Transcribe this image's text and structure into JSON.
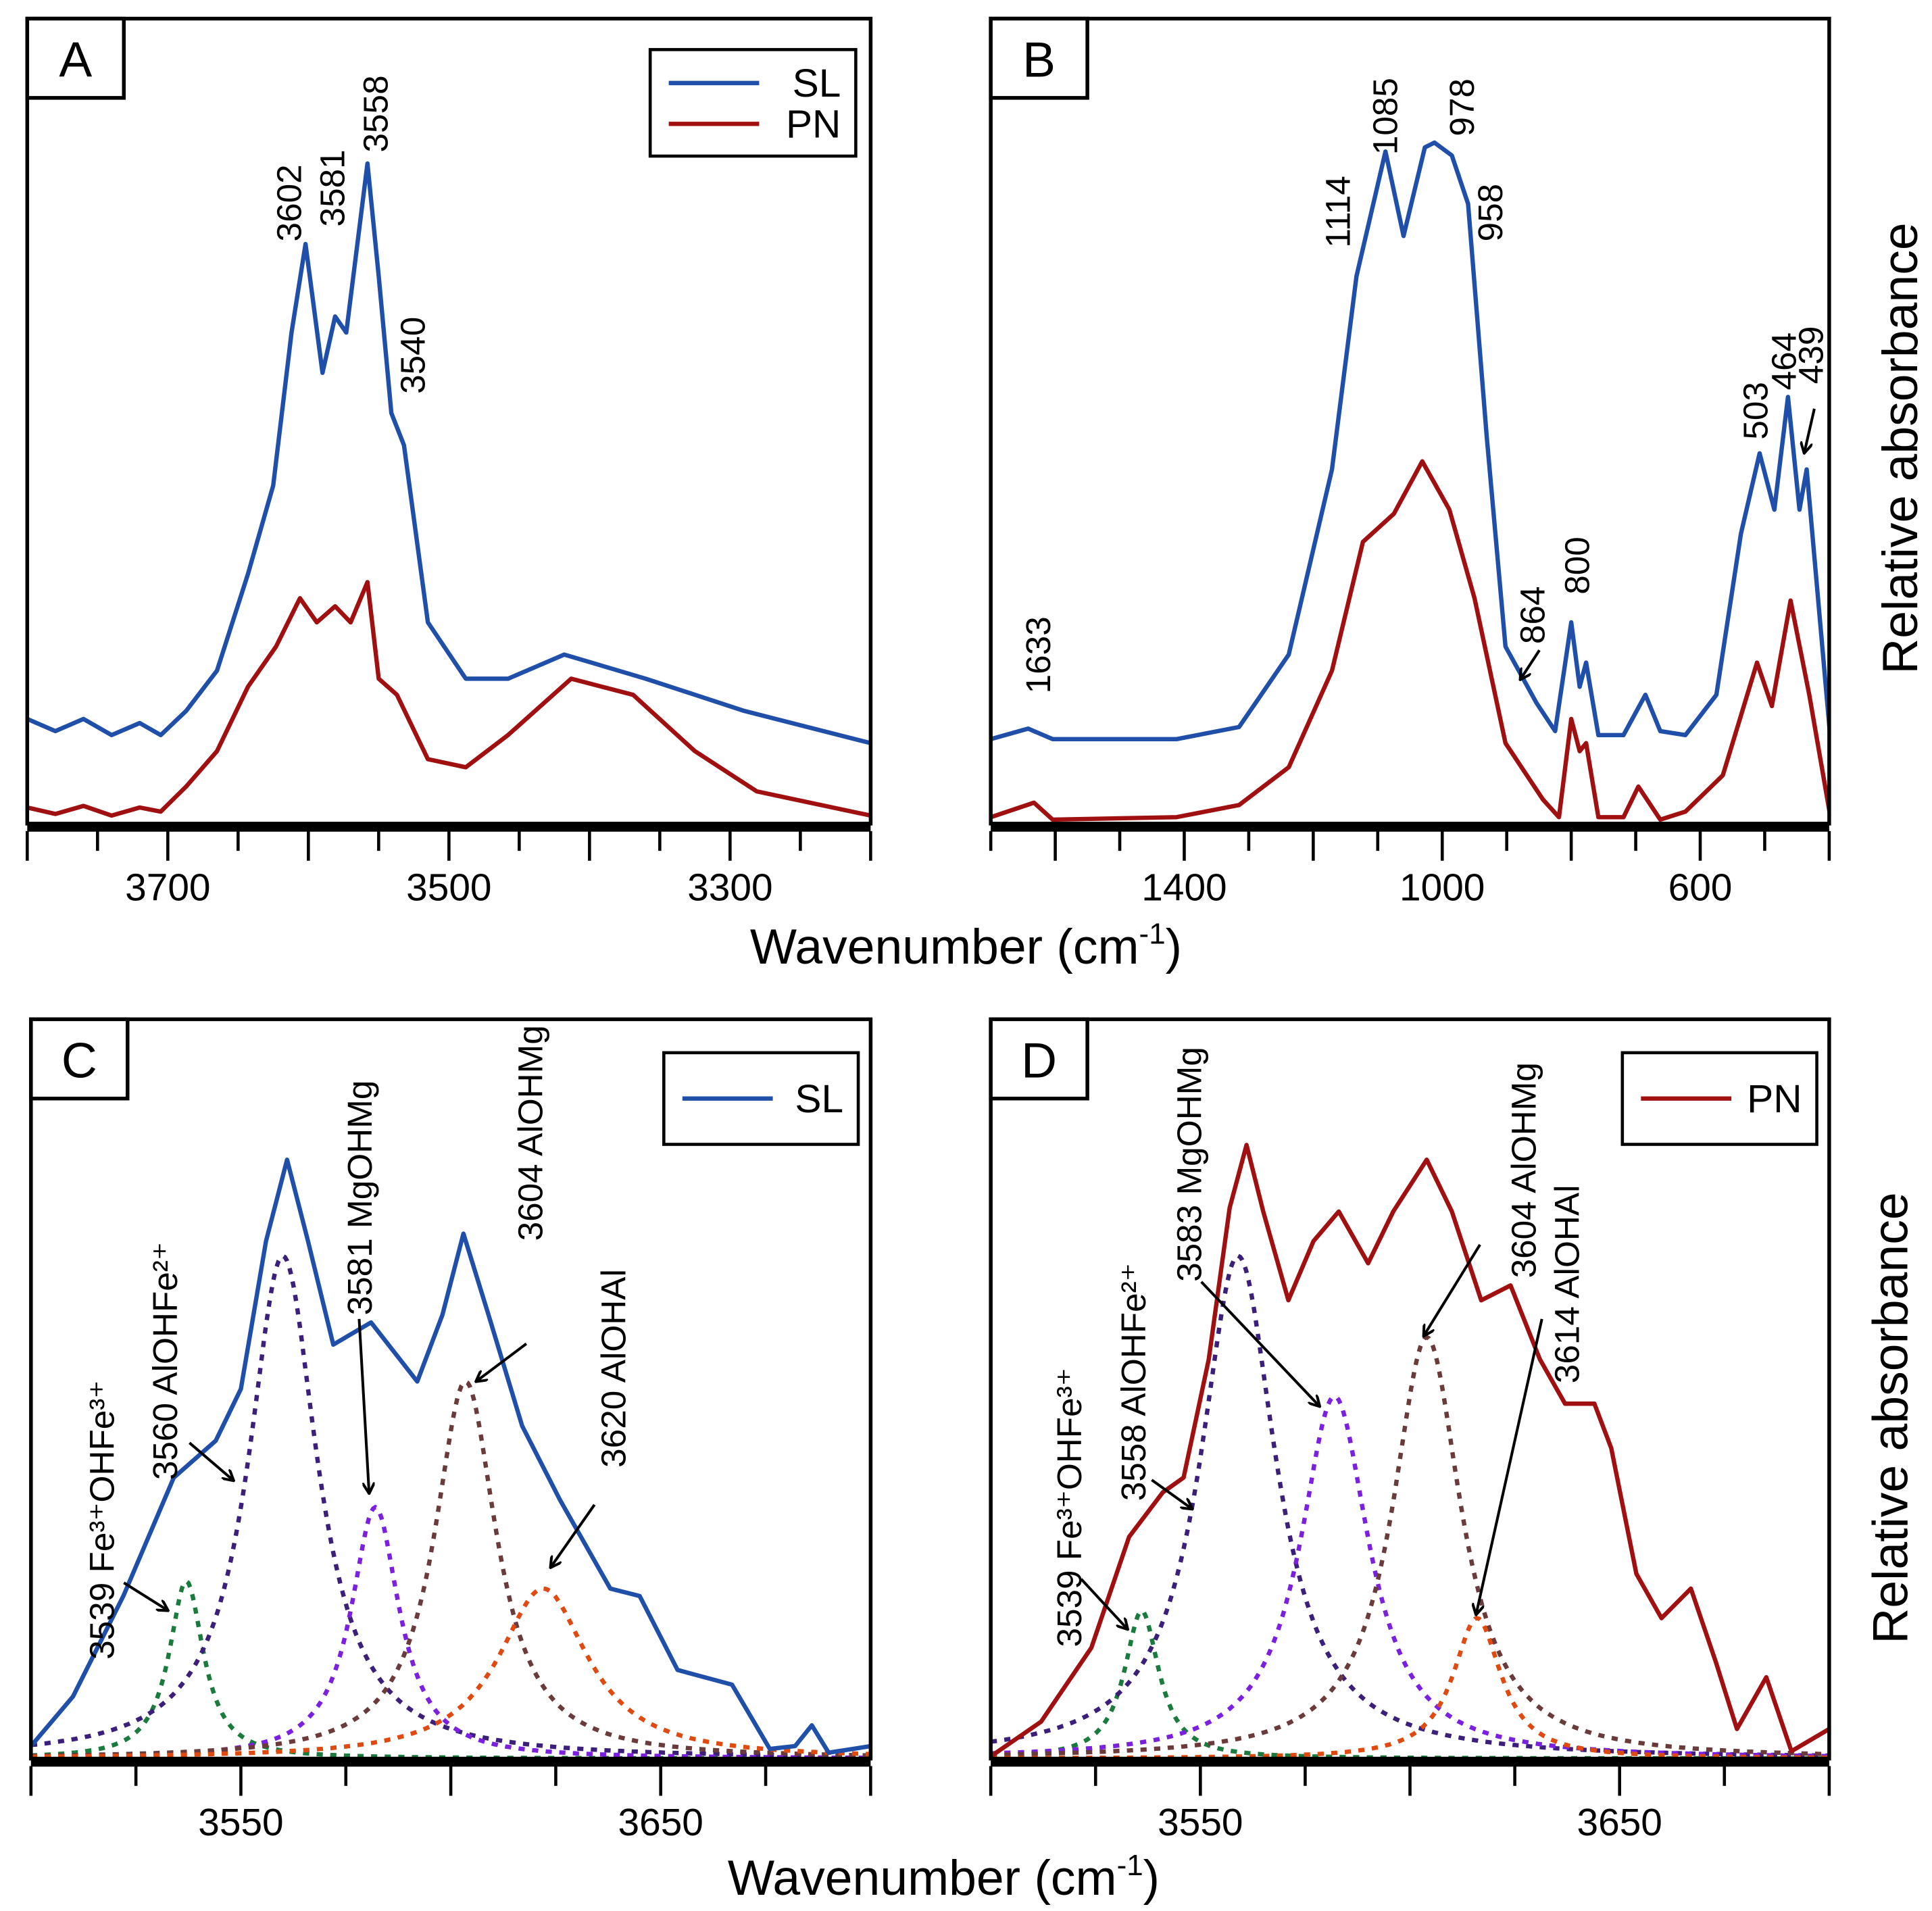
{
  "chart_data": [
    {
      "panel": "A",
      "type": "line",
      "xlabel": "Wavenumber (cm-1)",
      "ylabel": "Relative absorbance",
      "xlim": [
        3800,
        3200
      ],
      "ylim": [
        0,
        1
      ],
      "xticks_labeled": [
        "3700",
        "3500",
        "3300"
      ],
      "legend": {
        "position": "top-right",
        "entries": [
          "SL",
          "PN"
        ]
      },
      "series": [
        {
          "name": "SL",
          "color": "#1f4fa8",
          "x": [
            3800,
            3780,
            3760,
            3740,
            3720,
            3705,
            3687,
            3665,
            3643,
            3625,
            3612,
            3602,
            3590,
            3581,
            3573,
            3558,
            3550,
            3541,
            3532,
            3515,
            3488,
            3458,
            3418,
            3360,
            3290,
            3200
          ],
          "y": [
            0.13,
            0.115,
            0.13,
            0.11,
            0.125,
            0.11,
            0.14,
            0.19,
            0.31,
            0.42,
            0.61,
            0.72,
            0.56,
            0.63,
            0.61,
            0.82,
            0.68,
            0.51,
            0.47,
            0.25,
            0.18,
            0.18,
            0.21,
            0.18,
            0.14,
            0.1
          ]
        },
        {
          "name": "PN",
          "color": "#a01010",
          "x": [
            3800,
            3780,
            3760,
            3740,
            3720,
            3705,
            3687,
            3665,
            3643,
            3623,
            3606,
            3594,
            3581,
            3570,
            3558,
            3550,
            3537,
            3515,
            3488,
            3458,
            3413,
            3369,
            3325,
            3281,
            3200
          ],
          "y": [
            0.02,
            0.012,
            0.022,
            0.01,
            0.02,
            0.015,
            0.046,
            0.09,
            0.17,
            0.22,
            0.28,
            0.25,
            0.27,
            0.25,
            0.3,
            0.18,
            0.16,
            0.08,
            0.07,
            0.11,
            0.18,
            0.16,
            0.09,
            0.04,
            0.01
          ]
        }
      ],
      "annotations": [
        "3602",
        "3581",
        "3558",
        "3540"
      ]
    },
    {
      "panel": "B",
      "type": "line",
      "xlabel": "Wavenumber (cm-1)",
      "ylabel": "Relative absorbance",
      "xlim": [
        1700,
        400
      ],
      "ylim": [
        0,
        1
      ],
      "xticks_labeled": [
        "1400",
        "1000",
        "600"
      ],
      "series": [
        {
          "name": "SL",
          "color": "#1f4fa8",
          "x": [
            1700,
            1642,
            1604,
            1412,
            1315,
            1238,
            1171,
            1133,
            1088,
            1060,
            1027,
            1012,
            985,
            960,
            931,
            902,
            854,
            825,
            800,
            787,
            777,
            758,
            719,
            685,
            662,
            623,
            575,
            537,
            508,
            485,
            464,
            446,
            435,
            398
          ],
          "y": [
            0.105,
            0.118,
            0.105,
            0.105,
            0.12,
            0.21,
            0.44,
            0.68,
            0.835,
            0.73,
            0.84,
            0.846,
            0.83,
            0.77,
            0.48,
            0.22,
            0.15,
            0.115,
            0.25,
            0.17,
            0.2,
            0.11,
            0.11,
            0.16,
            0.115,
            0.11,
            0.16,
            0.36,
            0.46,
            0.39,
            0.53,
            0.39,
            0.44,
            0.105
          ]
        },
        {
          "name": "PN",
          "color": "#a01010",
          "x": [
            1700,
            1633,
            1604,
            1412,
            1315,
            1238,
            1171,
            1123,
            1075,
            1031,
            989,
            950,
            902,
            844,
            819,
            800,
            787,
            777,
            758,
            719,
            696,
            662,
            623,
            565,
            512,
            489,
            460,
            431,
            398
          ],
          "y": [
            0.008,
            0.026,
            0.005,
            0.008,
            0.023,
            0.07,
            0.19,
            0.35,
            0.385,
            0.45,
            0.39,
            0.28,
            0.1,
            0.03,
            0.008,
            0.13,
            0.09,
            0.1,
            0.008,
            0.008,
            0.046,
            0.005,
            0.015,
            0.06,
            0.2,
            0.146,
            0.277,
            0.16,
            0.008
          ]
        }
      ],
      "annotations": [
        "1114",
        "1085",
        "978",
        "958",
        "864",
        "800",
        "1633",
        "503",
        "464",
        "439"
      ]
    },
    {
      "panel": "C",
      "type": "line",
      "xlabel": "Wavenumber (cm-1)",
      "ylabel": "",
      "xlim": [
        3500,
        3700
      ],
      "ylim": [
        0,
        1
      ],
      "xticks_labeled": [
        "3550",
        "3650"
      ],
      "legend": {
        "position": "top-right",
        "entries": [
          "SL"
        ]
      },
      "series": [
        {
          "name": "SL",
          "color": "#1f4fa8",
          "x": [
            3500,
            3510,
            3522,
            3534,
            3544,
            3550,
            3556,
            3561,
            3566,
            3572,
            3581,
            3592,
            3598,
            3603,
            3609,
            3617,
            3626,
            3638,
            3645,
            3654,
            3667,
            3676,
            3682,
            3686,
            3690,
            3700
          ],
          "y": [
            0.017,
            0.084,
            0.22,
            0.38,
            0.43,
            0.5,
            0.7,
            0.81,
            0.7,
            0.56,
            0.59,
            0.51,
            0.6,
            0.71,
            0.6,
            0.45,
            0.35,
            0.23,
            0.22,
            0.12,
            0.1,
            0.013,
            0.017,
            0.045,
            0.008,
            0.017
          ]
        }
      ],
      "components": [
        {
          "name": "3539 Fe³⁺OHFe³⁺",
          "center": 3537,
          "height": 0.24,
          "hwhm": 5,
          "color": "#1b7a3e"
        },
        {
          "name": "3560 AlOHFe²⁺",
          "center": 3560,
          "height": 0.68,
          "hwhm": 10,
          "color": "#3b1f7a"
        },
        {
          "name": "3581 MgOHMg",
          "center": 3582,
          "height": 0.34,
          "hwhm": 7,
          "color": "#7b1fe0"
        },
        {
          "name": "3604 AlOHMg",
          "center": 3603.5,
          "height": 0.51,
          "hwhm": 9,
          "color": "#6b3a3a"
        },
        {
          "name": "3620 AlOHAl",
          "center": 3622,
          "height": 0.23,
          "hwhm": 13,
          "color": "#e04a10"
        }
      ]
    },
    {
      "panel": "D",
      "type": "line",
      "xlabel": "Wavenumber (cm-1)",
      "ylabel": "Relative absorbance",
      "xlim": [
        3500,
        3700
      ],
      "ylim": [
        0,
        1
      ],
      "xticks_labeled": [
        "3550",
        "3650"
      ],
      "legend": {
        "position": "top-right",
        "entries": [
          "PN"
        ]
      },
      "series": [
        {
          "name": "PN",
          "color": "#a01010",
          "x": [
            3500,
            3512,
            3524,
            3533,
            3541,
            3546,
            3552,
            3557,
            3561,
            3565,
            3571,
            3577,
            3583,
            3590,
            3596,
            3604,
            3610,
            3617,
            3624,
            3631,
            3637,
            3644,
            3648,
            3654,
            3660,
            3667,
            3673,
            3678,
            3685,
            3691,
            3700
          ],
          "y": [
            0.003,
            0.05,
            0.15,
            0.3,
            0.36,
            0.38,
            0.54,
            0.745,
            0.83,
            0.74,
            0.62,
            0.7,
            0.74,
            0.67,
            0.74,
            0.81,
            0.74,
            0.62,
            0.64,
            0.54,
            0.48,
            0.48,
            0.42,
            0.25,
            0.19,
            0.23,
            0.13,
            0.04,
            0.11,
            0.01,
            0.04
          ]
        }
      ],
      "components": [
        {
          "name": "3539 Fe³⁺OHFe³⁺",
          "center": 3536,
          "height": 0.2,
          "hwhm": 5,
          "color": "#1b7a3e"
        },
        {
          "name": "3558 AlOHFe²⁺",
          "center": 3559,
          "height": 0.68,
          "hwhm": 11,
          "color": "#3b1f7a"
        },
        {
          "name": "3583 MgOHMg",
          "center": 3582,
          "height": 0.49,
          "hwhm": 10,
          "color": "#7b1fe0"
        },
        {
          "name": "3604 AlOHMg",
          "center": 3604,
          "height": 0.57,
          "hwhm": 10,
          "color": "#6b3a3a"
        },
        {
          "name": "3614 AlOHAl",
          "center": 3616,
          "height": 0.19,
          "hwhm": 7,
          "color": "#e04a10"
        }
      ]
    }
  ],
  "labels": {
    "xaxis_title": "Wavenumber (cm",
    "xaxis_sup": "-1",
    "xaxis_close": ")",
    "yaxis_title": "Relative absorbance"
  }
}
